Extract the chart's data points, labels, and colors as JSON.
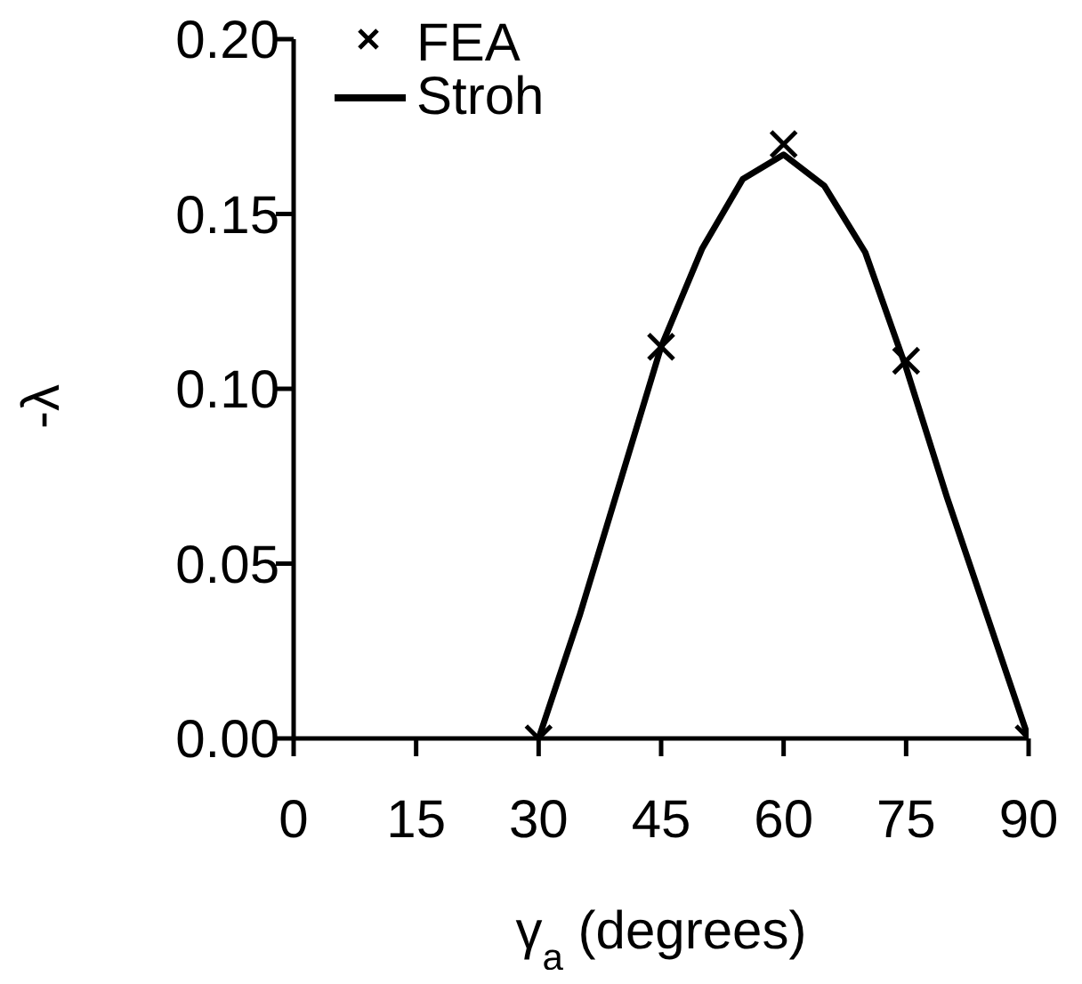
{
  "chart_data": {
    "type": "line",
    "xlabel": "γ$_{a}$ (degrees)",
    "ylabel": "-λ",
    "xlim": [
      0,
      90
    ],
    "xticks": [
      0,
      15,
      30,
      45,
      60,
      75,
      90
    ],
    "ylim": [
      0,
      0.2
    ],
    "yticks": [
      {
        "value": 0,
        "label": "0.00"
      },
      {
        "value": 0.05,
        "label": "0.05"
      },
      {
        "value": 0.1,
        "label": "0.10"
      },
      {
        "value": 0.15,
        "label": "0.15"
      },
      {
        "value": 0.2,
        "label": "0.20"
      }
    ],
    "grid": false,
    "legend": "top left",
    "series": [
      {
        "name": "FEA",
        "type": "scatter",
        "marker": "cross",
        "color": "#000000",
        "x": [
          30,
          45,
          60,
          75,
          90
        ],
        "values": [
          0,
          0.112,
          0.17,
          0.108,
          0
        ]
      },
      {
        "name": "Stroh",
        "type": "line",
        "marker": "none",
        "line_style": "solid",
        "color": "#000000",
        "x": [
          30,
          35,
          45,
          50,
          55,
          60,
          65,
          70,
          75,
          80,
          90
        ],
        "values": [
          0,
          0.035,
          0.112,
          0.14,
          0.16,
          0.167,
          0.158,
          0.139,
          0.106,
          0.069,
          0
        ]
      }
    ]
  }
}
